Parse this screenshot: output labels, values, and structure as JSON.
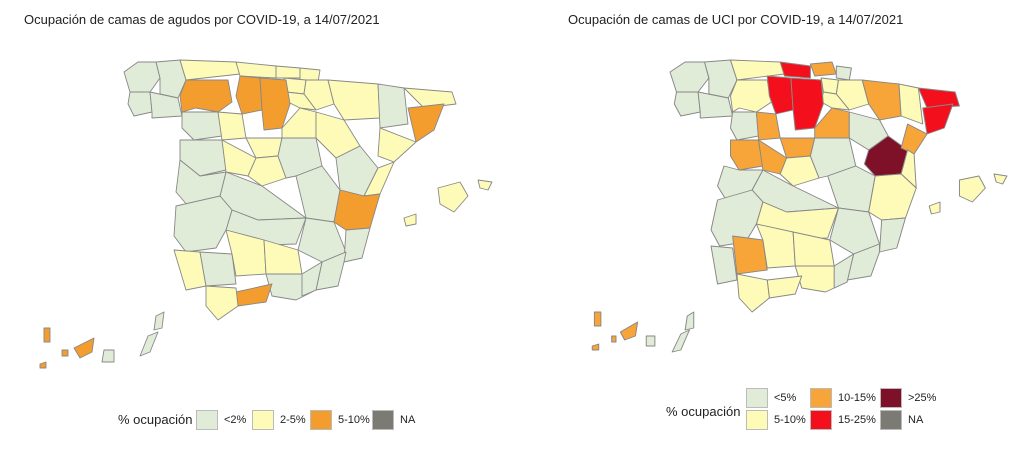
{
  "colors": {
    "lt5": "#e1ecd8",
    "c2_5": "#fdfbb7",
    "c5_10_left": "#f49d2f",
    "c5_10_right": "#fdfbb7",
    "c10_15": "#f7a538",
    "c15_25": "#f30f1c",
    "gt25": "#7e1127",
    "na": "#7b7b74",
    "border": "#888888"
  },
  "left_map": {
    "title": "Ocupación de camas de agudos por COVID-19, a 14/07/2021",
    "legend": {
      "title": "% ocupación",
      "items": [
        {
          "label": "<2%",
          "color": "#e1ecd8"
        },
        {
          "label": "2-5%",
          "color": "#fdfbb7"
        },
        {
          "label": "5-10%",
          "color": "#f49d2f"
        },
        {
          "label": "NA",
          "color": "#7b7b74"
        }
      ]
    }
  },
  "right_map": {
    "title": "Ocupación de camas de UCI por COVID-19, a 14/07/2021",
    "legend": {
      "title": "% ocupación",
      "items": [
        {
          "label": "<5%",
          "color": "#e1ecd8"
        },
        {
          "label": "5-10%",
          "color": "#fdfbb7"
        },
        {
          "label": "10-15%",
          "color": "#f7a538"
        },
        {
          "label": "15-25%",
          "color": "#f30f1c"
        },
        {
          "label": ">25%",
          "color": "#7e1127"
        },
        {
          "label": "NA",
          "color": "#7b7b74"
        }
      ]
    }
  }
}
